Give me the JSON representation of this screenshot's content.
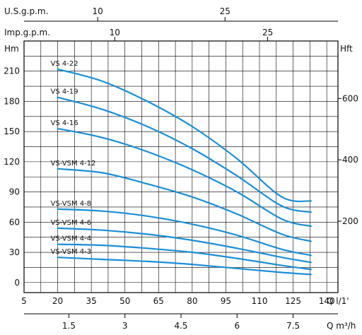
{
  "chart_data": {
    "type": "line",
    "colors": {
      "curve": "#1a8fd6",
      "grid": "#000000",
      "plot_bg": "#ffffff"
    },
    "grid": true,
    "units": {
      "usgpm": "U.S.g.p.m.",
      "impgpm": "Imp.g.p.m.",
      "head_m": "Hm",
      "head_ft": "Hft",
      "flow_lmin": "Q  l/1'",
      "flow_m3h": "Q  m³/h"
    },
    "axes": {
      "x_primary": {
        "unit": "l/min",
        "range": [
          5,
          145
        ],
        "ticks": [
          5,
          20,
          35,
          50,
          65,
          80,
          95,
          110,
          125,
          140
        ]
      },
      "y_primary": {
        "unit": "m",
        "range": [
          -10,
          240
        ],
        "ticks": [
          0,
          30,
          60,
          90,
          120,
          150,
          180,
          210
        ]
      },
      "y_secondary": {
        "unit": "ft",
        "ticks": [
          200,
          400,
          600
        ]
      },
      "x_m3h": {
        "ticks": [
          1.5,
          3,
          4.5,
          6,
          7.5
        ]
      },
      "x_usgpm": {
        "ticks": [
          10,
          25
        ]
      },
      "x_impgpm": {
        "ticks": [
          10,
          25
        ]
      }
    },
    "series": [
      {
        "name": "VS 4-22",
        "x": [
          20,
          40,
          60,
          80,
          100,
          120,
          133
        ],
        "y": [
          212,
          200,
          180,
          155,
          123,
          85,
          81
        ]
      },
      {
        "name": "VS 4-19",
        "x": [
          20,
          40,
          60,
          80,
          100,
          120,
          133
        ],
        "y": [
          184,
          172,
          155,
          133,
          106,
          76,
          70
        ]
      },
      {
        "name": "VS 4-16",
        "x": [
          20,
          40,
          60,
          80,
          100,
          120,
          133
        ],
        "y": [
          153,
          144,
          130,
          112,
          90,
          63,
          56
        ]
      },
      {
        "name": "VS-VSM 4-12",
        "x": [
          20,
          40,
          60,
          80,
          100,
          120,
          133
        ],
        "y": [
          113,
          109,
          98,
          85,
          68,
          48,
          41
        ]
      },
      {
        "name": "VS-VSM 4-8",
        "x": [
          20,
          40,
          60,
          80,
          100,
          120,
          133
        ],
        "y": [
          73,
          71,
          66,
          58,
          47,
          33,
          27
        ]
      },
      {
        "name": "VS-VSM 4-6",
        "x": [
          20,
          40,
          60,
          80,
          100,
          120,
          133
        ],
        "y": [
          54,
          52,
          48,
          42,
          34,
          25,
          20
        ]
      },
      {
        "name": "VS-VSM 4-4",
        "x": [
          20,
          40,
          60,
          80,
          100,
          120,
          133
        ],
        "y": [
          38,
          37,
          34,
          30,
          24,
          17,
          13
        ]
      },
      {
        "name": "VS-VSM 4-3",
        "x": [
          20,
          40,
          60,
          80,
          100,
          120,
          133
        ],
        "y": [
          25,
          23,
          21,
          18,
          14,
          10,
          8
        ]
      }
    ]
  }
}
